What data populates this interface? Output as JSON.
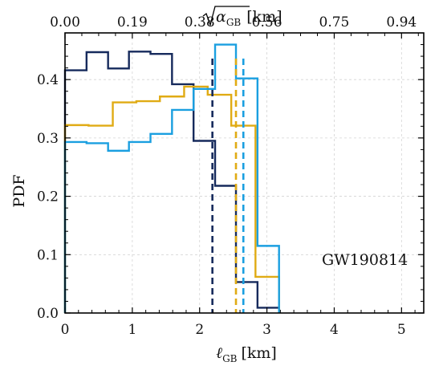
{
  "chart_data": {
    "type": "histogram",
    "annotation": "GW190814",
    "ylabel": "PDF",
    "xlabel": {
      "symbol": "ℓ",
      "sub": "GB",
      "unit": "[km]"
    },
    "top_xlabel": {
      "symbol": "α",
      "sub": "GB",
      "unit": "[km]"
    },
    "xlim": [
      0,
      5.33
    ],
    "ylim": [
      0,
      0.48
    ],
    "x_ticks": [
      "0",
      "1",
      "2",
      "3",
      "4",
      "5"
    ],
    "y_ticks": [
      "0.0",
      "0.1",
      "0.2",
      "0.3",
      "0.4"
    ],
    "top_ticks": [
      {
        "label": "0.00",
        "at": 0.0
      },
      {
        "label": "0.19",
        "at": 1.0
      },
      {
        "label": "0.38",
        "at": 2.0
      },
      {
        "label": "0.56",
        "at": 3.0
      },
      {
        "label": "0.75",
        "at": 4.0
      },
      {
        "label": "0.94",
        "at": 5.0
      }
    ],
    "grid": true,
    "bin_edges": [
      0,
      0.32,
      0.64,
      0.95,
      1.27,
      1.59,
      1.91,
      2.23,
      2.54,
      2.86,
      3.18
    ],
    "series": [
      {
        "color": "#162a5c",
        "values": [
          0.416,
          0.447,
          0.419,
          0.448,
          0.444,
          0.392,
          0.295,
          0.218,
          0.053,
          0.009
        ],
        "bin_edges": [
          0,
          0.32,
          0.64,
          0.95,
          1.27,
          1.59,
          1.91,
          2.23,
          2.54,
          2.86,
          3.18
        ],
        "dashed_line_x": 2.19
      },
      {
        "color": "#e0ab14",
        "values": [
          0.322,
          0.321,
          0.361,
          0.363,
          0.371,
          0.388,
          0.374,
          0.321,
          0.062
        ],
        "bin_edges": [
          0,
          0.35,
          0.71,
          1.06,
          1.41,
          1.77,
          2.12,
          2.47,
          2.83,
          3.18
        ],
        "dashed_line_x": 2.54
      },
      {
        "color": "#1a9fe0",
        "values": [
          0.293,
          0.291,
          0.278,
          0.293,
          0.307,
          0.348,
          0.384,
          0.46,
          0.402,
          0.115
        ],
        "bin_edges": [
          0,
          0.32,
          0.64,
          0.95,
          1.27,
          1.59,
          1.91,
          2.23,
          2.54,
          2.86,
          3.18
        ],
        "dashed_line_x": 2.65
      }
    ]
  }
}
